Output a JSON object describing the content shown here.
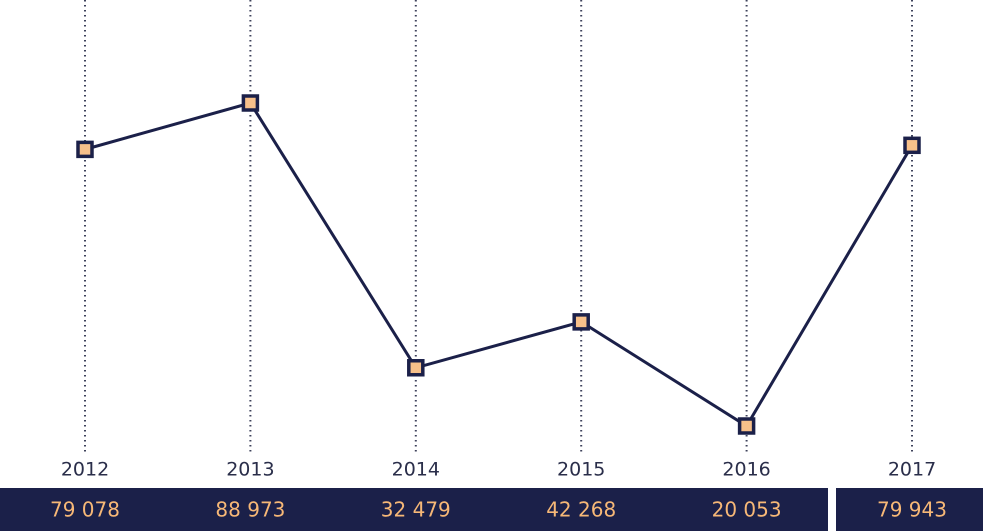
{
  "chart_data": {
    "type": "line",
    "categories": [
      "2012",
      "2013",
      "2014",
      "2015",
      "2016",
      "2017"
    ],
    "values": [
      79078,
      88973,
      32479,
      42268,
      20053,
      79943
    ],
    "value_labels": [
      "79 078",
      "88 973",
      "32 479",
      "42 268",
      "20 053",
      "79 943"
    ],
    "color": "#1b2049",
    "marker_color": "#f7c08a"
  }
}
